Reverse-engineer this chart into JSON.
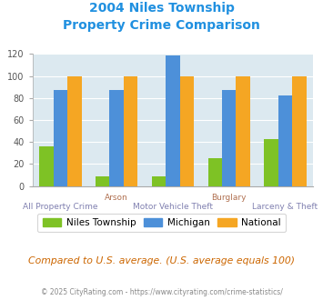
{
  "title_line1": "2004 Niles Township",
  "title_line2": "Property Crime Comparison",
  "categories": [
    "All Property Crime",
    "Arson",
    "Motor Vehicle Theft",
    "Burglary",
    "Larceny & Theft"
  ],
  "niles": [
    36,
    9,
    9,
    25,
    43
  ],
  "michigan": [
    87,
    87,
    119,
    87,
    82
  ],
  "national": [
    100,
    100,
    100,
    100,
    100
  ],
  "color_niles": "#7ec225",
  "color_michigan": "#4d90d9",
  "color_national": "#f5a623",
  "ylim": [
    0,
    120
  ],
  "yticks": [
    0,
    20,
    40,
    60,
    80,
    100,
    120
  ],
  "bg_color": "#dce9f0",
  "title_color": "#2090e0",
  "xlabel_color_top": "#b07050",
  "xlabel_color_bottom": "#9090c0",
  "note_text": "Compared to U.S. average. (U.S. average equals 100)",
  "footer_text": "© 2025 CityRating.com - https://www.cityrating.com/crime-statistics/",
  "legend_labels": [
    "Niles Township",
    "Michigan",
    "National"
  ],
  "bar_width": 0.25
}
